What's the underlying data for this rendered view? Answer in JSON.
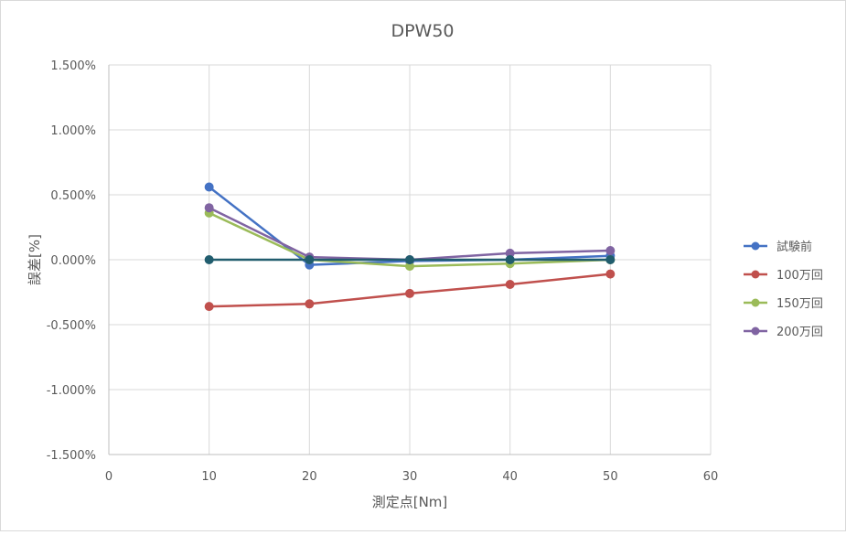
{
  "chart_data": {
    "type": "line",
    "title": "DPW50",
    "xlabel": "測定点[Nm]",
    "ylabel": "誤差[%]",
    "xlim": [
      0,
      60
    ],
    "ylim": [
      -1.5,
      1.5
    ],
    "x_ticks": [
      0,
      10,
      20,
      30,
      40,
      50,
      60
    ],
    "y_ticks": [
      1.5,
      1.0,
      0.5,
      0.0,
      -0.5,
      -1.0,
      -1.5
    ],
    "x_tick_labels": [
      "0",
      "10",
      "20",
      "30",
      "40",
      "50",
      "60"
    ],
    "y_tick_labels": [
      "1.500%",
      "1.000%",
      "0.500%",
      "0.000%",
      "-0.500%",
      "-1.000%",
      "-1.500%"
    ],
    "grid": true,
    "legend_position": "right",
    "series": [
      {
        "name": "試験前",
        "color": "#4472c4",
        "x": [
          10,
          20,
          30,
          40,
          50
        ],
        "y": [
          0.56,
          -0.04,
          -0.01,
          0.0,
          0.03
        ]
      },
      {
        "name": "100万回",
        "color": "#c0504d",
        "x": [
          10,
          20,
          30,
          40,
          50
        ],
        "y": [
          -0.36,
          -0.34,
          -0.26,
          -0.19,
          -0.11
        ]
      },
      {
        "name": "150万回",
        "color": "#9bbb59",
        "x": [
          10,
          20,
          30,
          40,
          50
        ],
        "y": [
          0.36,
          0.0,
          -0.05,
          -0.03,
          0.0
        ]
      },
      {
        "name": "200万回",
        "color": "#8064a2",
        "x": [
          10,
          20,
          30,
          40,
          50
        ],
        "y": [
          0.4,
          0.02,
          0.0,
          0.05,
          0.07
        ]
      },
      {
        "color": "#215d6e",
        "x": [
          10,
          20,
          30,
          40,
          50
        ],
        "y": [
          0.0,
          0.0,
          0.0,
          0.0,
          0.0
        ]
      }
    ]
  }
}
